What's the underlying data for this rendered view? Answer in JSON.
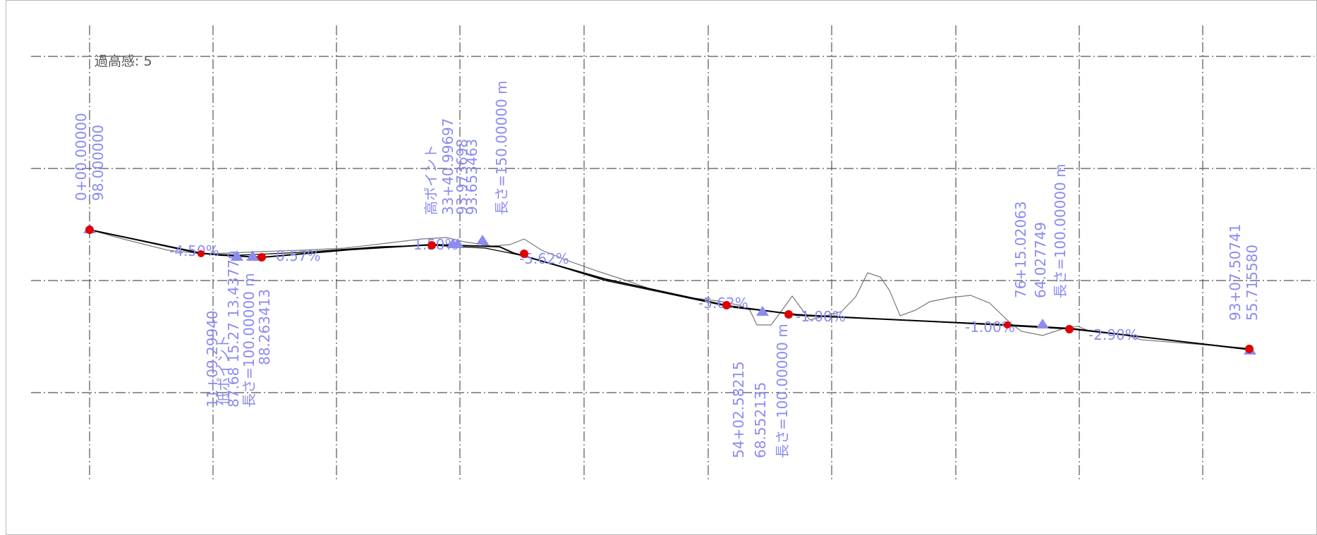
{
  "view": {
    "exaggeration_label": "過高感: 5"
  },
  "colors": {
    "grid": "#555555",
    "proposed_line": "#000000",
    "ground_line": "#777777",
    "label_text": "#8b8bf0",
    "pvi_point": "#e00000",
    "triangle_marker": "#8b8bf0"
  },
  "annotations": [
    {
      "id": "start",
      "lines": [
        "0+00.00000",
        "98.000000"
      ]
    },
    {
      "id": "low-point",
      "lines": [
        "11+09.29940",
        "低ポイント",
        "87.68 15.27 13.43779",
        "長さ=100.00000 m",
        "88.263413"
      ]
    },
    {
      "id": "high-point",
      "lines": [
        "高ポイント",
        "33+40.99697",
        "93.973698",
        "93.653463",
        "長さ=150.00000 m"
      ]
    },
    {
      "id": "pvi-54",
      "lines": [
        "54+02.58215",
        "68.552135",
        "長さ=100.00000 m"
      ]
    },
    {
      "id": "pvi-76",
      "lines": [
        "76+15.02063",
        "64.027749",
        "長さ=100.00000 m"
      ]
    },
    {
      "id": "end",
      "lines": [
        "93+07.50741",
        "55.715580"
      ]
    }
  ],
  "grade_labels": [
    "-4.50%",
    "0.57%",
    "1.50%",
    "-5.62%",
    "-5.62%",
    "-1.00%",
    "-1.00%",
    "-2.90%"
  ]
}
